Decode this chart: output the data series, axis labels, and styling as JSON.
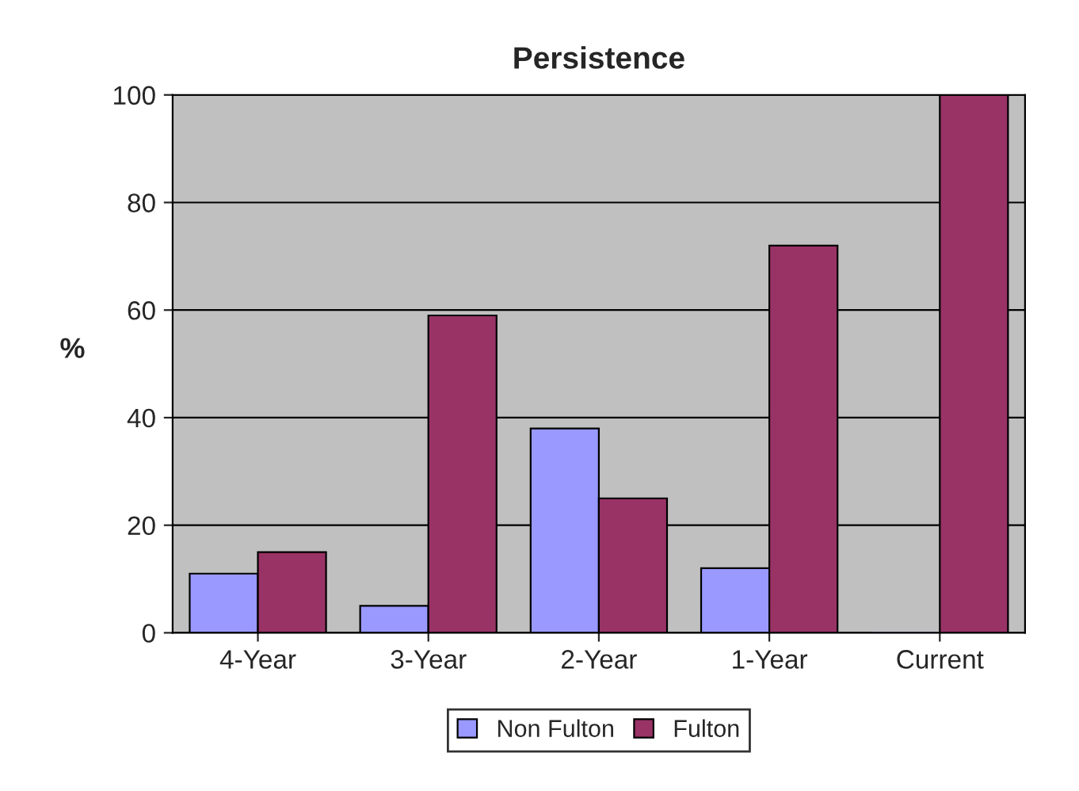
{
  "chart_data": {
    "type": "bar",
    "title": "Persistence",
    "ylabel": "%",
    "categories": [
      "4-Year",
      "3-Year",
      "2-Year",
      "1-Year",
      "Current"
    ],
    "series": [
      {
        "name": "Non Fulton",
        "color": "#9999ff",
        "values": [
          11,
          5,
          38,
          12,
          0
        ]
      },
      {
        "name": "Fulton",
        "color": "#993366",
        "values": [
          15,
          59,
          25,
          72,
          100
        ]
      }
    ],
    "ylim": [
      0,
      100
    ],
    "yticks": [
      0,
      20,
      40,
      60,
      80,
      100
    ],
    "grid": "y",
    "legend": "bottom"
  }
}
